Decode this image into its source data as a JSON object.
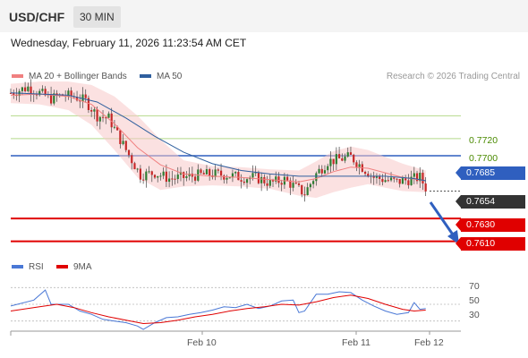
{
  "header": {
    "pair": "USD/CHF",
    "timeframe": "30 MIN"
  },
  "datetime": "Wednesday, February 11, 2026 11:23:54 AM CET",
  "legend": {
    "items": [
      {
        "label": "MA 20 + Bollinger Bands",
        "color": "#f08080"
      },
      {
        "label": "MA 50",
        "color": "#2f5f9e"
      }
    ],
    "copyright": "Research © 2026 Trading Central"
  },
  "rsi_legend": {
    "items": [
      {
        "label": "RSI",
        "color": "#4a78d6"
      },
      {
        "label": "9MA",
        "color": "#e00000"
      }
    ]
  },
  "levels": [
    {
      "value": "0.7720",
      "style": "green-line"
    },
    {
      "value": "0.7700",
      "style": "green-line"
    },
    {
      "value": "0.7685",
      "style": "blue-badge",
      "color": "#2f5fbf"
    },
    {
      "value": "0.7654",
      "style": "current-price",
      "color": "#333333"
    },
    {
      "value": "0.7630",
      "style": "red-badge",
      "color": "#e00000"
    },
    {
      "value": "0.7610",
      "style": "red-badge",
      "color": "#e00000"
    }
  ],
  "rsi_ticks": [
    "70",
    "50",
    "30"
  ],
  "x_ticks": [
    "Feb 10",
    "Feb 11",
    "Feb 12"
  ],
  "chart_data": [
    {
      "type": "candlestick",
      "y_range": [
        0.7594,
        0.7754
      ],
      "current_price": 0.7654,
      "support": [
        0.763,
        0.761
      ],
      "resistance": [
        0.7685,
        0.77,
        0.772
      ],
      "forecast": "down",
      "series": [
        {
          "name": "MA 20 + Bollinger Bands"
        },
        {
          "name": "MA 50"
        }
      ],
      "price_path": [
        [
          0,
          0.774
        ],
        [
          6,
          0.7745
        ],
        [
          10,
          0.774
        ],
        [
          14,
          0.7735
        ],
        [
          18,
          0.7738
        ],
        [
          22,
          0.7737
        ],
        [
          26,
          0.7733
        ],
        [
          30,
          0.772
        ],
        [
          34,
          0.7718
        ],
        [
          40,
          0.769
        ],
        [
          45,
          0.7668
        ],
        [
          50,
          0.767
        ],
        [
          55,
          0.7665
        ],
        [
          60,
          0.7666
        ],
        [
          65,
          0.7668
        ],
        [
          70,
          0.7669
        ],
        [
          75,
          0.7668
        ],
        [
          80,
          0.7666
        ],
        [
          85,
          0.7666
        ],
        [
          90,
          0.7661
        ],
        [
          95,
          0.7664
        ],
        [
          99,
          0.7657
        ],
        [
          102,
          0.7652
        ],
        [
          106,
          0.7669
        ],
        [
          110,
          0.768
        ],
        [
          114,
          0.7682
        ],
        [
          118,
          0.7684
        ],
        [
          122,
          0.7675
        ],
        [
          126,
          0.7666
        ],
        [
          130,
          0.7664
        ],
        [
          134,
          0.7662
        ],
        [
          138,
          0.7664
        ],
        [
          142,
          0.7666
        ],
        [
          144,
          0.7657
        ]
      ],
      "ma20_path": [
        [
          0,
          0.7738
        ],
        [
          10,
          0.7739
        ],
        [
          20,
          0.7737
        ],
        [
          28,
          0.773
        ],
        [
          36,
          0.7713
        ],
        [
          44,
          0.7692
        ],
        [
          52,
          0.7677
        ],
        [
          60,
          0.7669
        ],
        [
          70,
          0.7667
        ],
        [
          80,
          0.7666
        ],
        [
          90,
          0.7664
        ],
        [
          100,
          0.7662
        ],
        [
          106,
          0.7665
        ],
        [
          112,
          0.7671
        ],
        [
          118,
          0.7675
        ],
        [
          124,
          0.7674
        ],
        [
          130,
          0.767
        ],
        [
          136,
          0.7666
        ],
        [
          144,
          0.7663
        ]
      ],
      "bb_upper_path": [
        [
          0,
          0.7748
        ],
        [
          10,
          0.775
        ],
        [
          20,
          0.775
        ],
        [
          28,
          0.7747
        ],
        [
          36,
          0.7737
        ],
        [
          44,
          0.772
        ],
        [
          52,
          0.7699
        ],
        [
          60,
          0.7681
        ],
        [
          70,
          0.7676
        ],
        [
          80,
          0.7675
        ],
        [
          90,
          0.7673
        ],
        [
          100,
          0.7672
        ],
        [
          106,
          0.768
        ],
        [
          112,
          0.7689
        ],
        [
          118,
          0.7693
        ],
        [
          124,
          0.769
        ],
        [
          130,
          0.7684
        ],
        [
          136,
          0.7678
        ],
        [
          144,
          0.7672
        ]
      ],
      "bb_lower_path": [
        [
          0,
          0.7731
        ],
        [
          10,
          0.773
        ],
        [
          20,
          0.7725
        ],
        [
          28,
          0.7712
        ],
        [
          36,
          0.769
        ],
        [
          44,
          0.7666
        ],
        [
          52,
          0.7655
        ],
        [
          60,
          0.7658
        ],
        [
          70,
          0.7659
        ],
        [
          80,
          0.7658
        ],
        [
          90,
          0.7656
        ],
        [
          100,
          0.765
        ],
        [
          106,
          0.7648
        ],
        [
          112,
          0.7653
        ],
        [
          118,
          0.7657
        ],
        [
          124,
          0.766
        ],
        [
          130,
          0.7657
        ],
        [
          136,
          0.7654
        ],
        [
          144,
          0.7653
        ]
      ],
      "ma50_path": [
        [
          0,
          0.774
        ],
        [
          20,
          0.7738
        ],
        [
          30,
          0.7732
        ],
        [
          40,
          0.7718
        ],
        [
          50,
          0.7702
        ],
        [
          60,
          0.7688
        ],
        [
          70,
          0.7678
        ],
        [
          80,
          0.7672
        ],
        [
          90,
          0.7669
        ],
        [
          100,
          0.7667
        ],
        [
          110,
          0.7667
        ],
        [
          120,
          0.7667
        ],
        [
          130,
          0.7667
        ],
        [
          140,
          0.7665
        ],
        [
          144,
          0.7663
        ]
      ]
    },
    {
      "type": "line",
      "y_range": [
        20,
        80
      ],
      "reference_lines": [
        70,
        50,
        30
      ],
      "series": [
        {
          "name": "RSI",
          "path": [
            [
              0,
              48
            ],
            [
              8,
              55
            ],
            [
              12,
              67
            ],
            [
              14,
              50
            ],
            [
              20,
              50
            ],
            [
              24,
              42
            ],
            [
              28,
              38
            ],
            [
              32,
              32
            ],
            [
              36,
              30
            ],
            [
              40,
              28
            ],
            [
              44,
              24
            ],
            [
              46,
              20
            ],
            [
              50,
              28
            ],
            [
              54,
              34
            ],
            [
              58,
              35
            ],
            [
              62,
              38
            ],
            [
              66,
              40
            ],
            [
              70,
              43
            ],
            [
              74,
              47
            ],
            [
              78,
              46
            ],
            [
              82,
              50
            ],
            [
              86,
              45
            ],
            [
              90,
              48
            ],
            [
              94,
              54
            ],
            [
              98,
              55
            ],
            [
              100,
              40
            ],
            [
              102,
              42
            ],
            [
              106,
              62
            ],
            [
              110,
              62
            ],
            [
              114,
              65
            ],
            [
              118,
              64
            ],
            [
              122,
              55
            ],
            [
              126,
              48
            ],
            [
              130,
              42
            ],
            [
              134,
              38
            ],
            [
              138,
              40
            ],
            [
              140,
              52
            ],
            [
              142,
              44
            ],
            [
              144,
              45
            ]
          ]
        },
        {
          "name": "9MA",
          "path": [
            [
              0,
              42
            ],
            [
              10,
              47
            ],
            [
              16,
              50
            ],
            [
              22,
              46
            ],
            [
              28,
              40
            ],
            [
              34,
              35
            ],
            [
              40,
              31
            ],
            [
              46,
              27
            ],
            [
              52,
              28
            ],
            [
              58,
              31
            ],
            [
              64,
              35
            ],
            [
              70,
              38
            ],
            [
              76,
              42
            ],
            [
              82,
              45
            ],
            [
              88,
              47
            ],
            [
              94,
              50
            ],
            [
              100,
              49
            ],
            [
              106,
              53
            ],
            [
              112,
              58
            ],
            [
              118,
              61
            ],
            [
              124,
              57
            ],
            [
              130,
              50
            ],
            [
              136,
              44
            ],
            [
              140,
              42
            ],
            [
              144,
              43
            ]
          ]
        }
      ]
    }
  ]
}
